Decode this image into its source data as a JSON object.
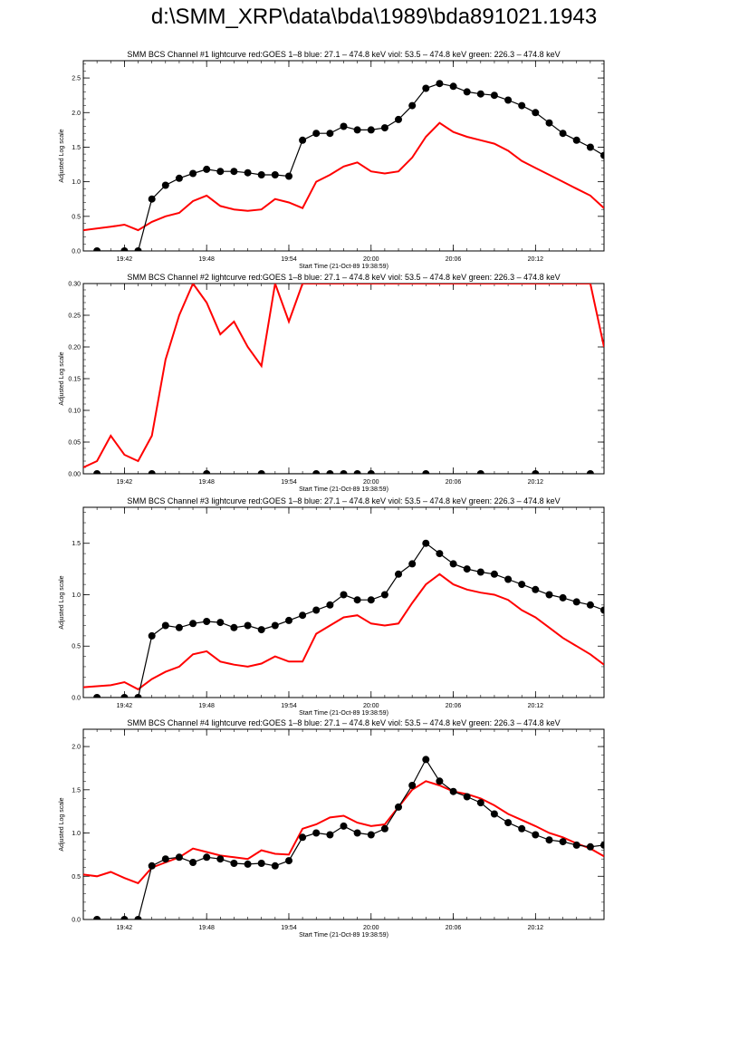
{
  "page": {
    "title": "d:\\SMM_XRP\\data\\bda\\1989\\bda891021.1943"
  },
  "chart_data": [
    {
      "type": "line",
      "title": "SMM BCS Channel #1 lightcurve  red:GOES 1–8  blue: 27.1 – 474.8 keV  viol: 53.5 – 474.8 keV  green: 226.3 – 474.8 keV",
      "xlabel": "Start Time (21-Oct-89 19:38:59)",
      "ylabel": "Adjusted Log scale",
      "xlim": [
        "19:39",
        "20:17"
      ],
      "ylim": [
        0,
        2.75
      ],
      "x_ticks": [
        "19:42",
        "19:48",
        "19:54",
        "20:00",
        "20:06",
        "20:12"
      ],
      "y_ticks": [
        "0.0",
        "0.5",
        "1.0",
        "1.5",
        "2.0",
        "2.5"
      ],
      "series": [
        {
          "color": "#ff0000",
          "marker": "none",
          "x": [
            "19:39",
            "19:41",
            "19:42",
            "19:43",
            "19:44",
            "19:45",
            "19:46",
            "19:47",
            "19:48",
            "19:49",
            "19:50",
            "19:51",
            "19:52",
            "19:53",
            "19:54",
            "19:55",
            "19:56",
            "19:57",
            "19:58",
            "19:59",
            "20:00",
            "20:01",
            "20:02",
            "20:03",
            "20:04",
            "20:05",
            "20:06",
            "20:07",
            "20:08",
            "20:09",
            "20:10",
            "20:11",
            "20:12",
            "20:13",
            "20:14",
            "20:15",
            "20:16",
            "20:17"
          ],
          "values": [
            0.3,
            0.35,
            0.38,
            0.3,
            0.42,
            0.5,
            0.55,
            0.72,
            0.8,
            0.65,
            0.6,
            0.58,
            0.6,
            0.75,
            0.7,
            0.62,
            1.0,
            1.1,
            1.22,
            1.28,
            1.15,
            1.12,
            1.15,
            1.35,
            1.65,
            1.85,
            1.72,
            1.65,
            1.6,
            1.55,
            1.45,
            1.3,
            1.2,
            1.1,
            1.0,
            0.9,
            0.8,
            0.62
          ]
        },
        {
          "color": "#000000",
          "marker": "circle",
          "x": [
            "19:40",
            "19:42",
            "19:43",
            "19:44",
            "19:45",
            "19:46",
            "19:47",
            "19:48",
            "19:49",
            "19:50",
            "19:51",
            "19:52",
            "19:53",
            "19:54",
            "19:55",
            "19:56",
            "19:57",
            "19:58",
            "19:59",
            "20:00",
            "20:01",
            "20:02",
            "20:03",
            "20:04",
            "20:05",
            "20:06",
            "20:07",
            "20:08",
            "20:09",
            "20:10",
            "20:11",
            "20:12",
            "20:13",
            "20:14",
            "20:15",
            "20:16",
            "20:17"
          ],
          "values": [
            0.0,
            0.0,
            0.0,
            0.75,
            0.95,
            1.05,
            1.12,
            1.18,
            1.15,
            1.15,
            1.13,
            1.1,
            1.1,
            1.08,
            1.6,
            1.7,
            1.7,
            1.8,
            1.75,
            1.75,
            1.78,
            1.9,
            2.1,
            2.35,
            2.42,
            2.38,
            2.3,
            2.27,
            2.25,
            2.18,
            2.1,
            2.0,
            1.85,
            1.7,
            1.6,
            1.5,
            1.38
          ]
        }
      ]
    },
    {
      "type": "line",
      "title": "SMM BCS Channel #2 lightcurve  red:GOES 1–8  blue: 27.1 – 474.8 keV  viol: 53.5 – 474.8 keV  green: 226.3 – 474.8 keV",
      "xlabel": "Start Time (21-Oct-89 19:38:59)",
      "ylabel": "Adjusted Log scale",
      "xlim": [
        "19:39",
        "20:17"
      ],
      "ylim": [
        0,
        0.3
      ],
      "x_ticks": [
        "19:42",
        "19:48",
        "19:54",
        "20:00",
        "20:06",
        "20:12"
      ],
      "y_ticks": [
        "0.00",
        "0.05",
        "0.10",
        "0.15",
        "0.20",
        "0.25",
        "0.30"
      ],
      "series": [
        {
          "color": "#ff0000",
          "marker": "none",
          "x": [
            "19:39",
            "19:40",
            "19:41",
            "19:42",
            "19:43",
            "19:44",
            "19:45",
            "19:46",
            "19:47",
            "19:48",
            "19:49",
            "19:50",
            "19:51",
            "19:52",
            "19:53",
            "19:54",
            "19:55",
            "20:16",
            "20:17"
          ],
          "values": [
            0.01,
            0.02,
            0.06,
            0.03,
            0.02,
            0.06,
            0.18,
            0.25,
            0.3,
            0.27,
            0.22,
            0.24,
            0.2,
            0.17,
            0.3,
            0.24,
            0.3,
            0.3,
            0.2
          ]
        },
        {
          "color": "#000000",
          "marker": "circle",
          "x": [
            "19:40",
            "19:44",
            "19:48",
            "19:52",
            "19:56",
            "19:57",
            "19:58",
            "19:59",
            "20:00",
            "20:04",
            "20:08",
            "20:12",
            "20:16"
          ],
          "values": [
            0,
            0,
            0,
            0,
            0,
            0,
            0,
            0,
            0,
            0,
            0,
            0,
            0
          ]
        }
      ]
    },
    {
      "type": "line",
      "title": "SMM BCS Channel #3 lightcurve  red:GOES 1–8  blue: 27.1 – 474.8 keV  viol: 53.5 – 474.8 keV  green: 226.3 – 474.8 keV",
      "xlabel": "Start Time (21-Oct-89 19:38:59)",
      "ylabel": "Adjusted Log scale",
      "xlim": [
        "19:39",
        "20:17"
      ],
      "ylim": [
        0,
        1.85
      ],
      "x_ticks": [
        "19:42",
        "19:48",
        "19:54",
        "20:00",
        "20:06",
        "20:12"
      ],
      "y_ticks": [
        "0.0",
        "0.5",
        "1.0",
        "1.5"
      ],
      "series": [
        {
          "color": "#ff0000",
          "marker": "none",
          "x": [
            "19:39",
            "19:41",
            "19:42",
            "19:43",
            "19:44",
            "19:45",
            "19:46",
            "19:47",
            "19:48",
            "19:49",
            "19:50",
            "19:51",
            "19:52",
            "19:53",
            "19:54",
            "19:55",
            "19:56",
            "19:57",
            "19:58",
            "19:59",
            "20:00",
            "20:01",
            "20:02",
            "20:03",
            "20:04",
            "20:05",
            "20:06",
            "20:07",
            "20:08",
            "20:09",
            "20:10",
            "20:11",
            "20:12",
            "20:13",
            "20:14",
            "20:15",
            "20:16",
            "20:17"
          ],
          "values": [
            0.1,
            0.12,
            0.15,
            0.08,
            0.18,
            0.25,
            0.3,
            0.42,
            0.45,
            0.35,
            0.32,
            0.3,
            0.33,
            0.4,
            0.35,
            0.35,
            0.62,
            0.7,
            0.78,
            0.8,
            0.72,
            0.7,
            0.72,
            0.92,
            1.1,
            1.2,
            1.1,
            1.05,
            1.02,
            1.0,
            0.95,
            0.85,
            0.78,
            0.68,
            0.58,
            0.5,
            0.42,
            0.32
          ]
        },
        {
          "color": "#000000",
          "marker": "circle",
          "x": [
            "19:40",
            "19:42",
            "19:43",
            "19:44",
            "19:45",
            "19:46",
            "19:47",
            "19:48",
            "19:49",
            "19:50",
            "19:51",
            "19:52",
            "19:53",
            "19:54",
            "19:55",
            "19:56",
            "19:57",
            "19:58",
            "19:59",
            "20:00",
            "20:01",
            "20:02",
            "20:03",
            "20:04",
            "20:05",
            "20:06",
            "20:07",
            "20:08",
            "20:09",
            "20:10",
            "20:11",
            "20:12",
            "20:13",
            "20:14",
            "20:15",
            "20:16",
            "20:17"
          ],
          "values": [
            0.0,
            0.0,
            0.0,
            0.6,
            0.7,
            0.68,
            0.72,
            0.74,
            0.73,
            0.68,
            0.7,
            0.66,
            0.7,
            0.75,
            0.8,
            0.85,
            0.9,
            1.0,
            0.95,
            0.95,
            1.0,
            1.2,
            1.3,
            1.5,
            1.4,
            1.3,
            1.25,
            1.22,
            1.2,
            1.15,
            1.1,
            1.05,
            1.0,
            0.97,
            0.93,
            0.9,
            0.85
          ]
        }
      ]
    },
    {
      "type": "line",
      "title": "SMM BCS Channel #4 lightcurve  red:GOES 1–8  blue: 27.1 – 474.8 keV  viol: 53.5 – 474.8 keV  green: 226.3 – 474.8 keV",
      "xlabel": "Start Time (21-Oct-89 19:38:59)",
      "ylabel": "Adjusted Log scale",
      "xlim": [
        "19:39",
        "20:17"
      ],
      "ylim": [
        0,
        2.2
      ],
      "x_ticks": [
        "19:42",
        "19:48",
        "19:54",
        "20:00",
        "20:06",
        "20:12"
      ],
      "y_ticks": [
        "0.0",
        "0.5",
        "1.0",
        "1.5",
        "2.0"
      ],
      "series": [
        {
          "color": "#ff0000",
          "marker": "none",
          "x": [
            "19:39",
            "19:40",
            "19:41",
            "19:42",
            "19:43",
            "19:44",
            "19:45",
            "19:46",
            "19:47",
            "19:48",
            "19:49",
            "19:50",
            "19:51",
            "19:52",
            "19:53",
            "19:54",
            "19:55",
            "19:56",
            "19:57",
            "19:58",
            "19:59",
            "20:00",
            "20:01",
            "20:02",
            "20:03",
            "20:04",
            "20:05",
            "20:06",
            "20:07",
            "20:08",
            "20:09",
            "20:10",
            "20:11",
            "20:12",
            "20:13",
            "20:14",
            "20:15",
            "20:16",
            "20:17"
          ],
          "values": [
            0.52,
            0.5,
            0.55,
            0.48,
            0.42,
            0.6,
            0.66,
            0.72,
            0.82,
            0.78,
            0.74,
            0.72,
            0.7,
            0.8,
            0.76,
            0.75,
            1.05,
            1.1,
            1.18,
            1.2,
            1.12,
            1.08,
            1.1,
            1.3,
            1.5,
            1.6,
            1.55,
            1.48,
            1.45,
            1.4,
            1.32,
            1.22,
            1.15,
            1.08,
            1.0,
            0.95,
            0.88,
            0.82,
            0.73
          ]
        },
        {
          "color": "#000000",
          "marker": "circle",
          "x": [
            "19:40",
            "19:42",
            "19:43",
            "19:44",
            "19:45",
            "19:46",
            "19:47",
            "19:48",
            "19:49",
            "19:50",
            "19:51",
            "19:52",
            "19:53",
            "19:54",
            "19:55",
            "19:56",
            "19:57",
            "19:58",
            "19:59",
            "20:00",
            "20:01",
            "20:02",
            "20:03",
            "20:04",
            "20:05",
            "20:06",
            "20:07",
            "20:08",
            "20:09",
            "20:10",
            "20:11",
            "20:12",
            "20:13",
            "20:14",
            "20:15",
            "20:16",
            "20:17"
          ],
          "values": [
            0.0,
            0.0,
            0.0,
            0.62,
            0.7,
            0.72,
            0.66,
            0.72,
            0.7,
            0.65,
            0.64,
            0.65,
            0.62,
            0.68,
            0.95,
            1.0,
            0.98,
            1.08,
            1.0,
            0.98,
            1.05,
            1.3,
            1.55,
            1.85,
            1.6,
            1.48,
            1.42,
            1.35,
            1.22,
            1.12,
            1.05,
            0.98,
            0.92,
            0.9,
            0.86,
            0.84,
            0.86
          ]
        }
      ]
    }
  ]
}
